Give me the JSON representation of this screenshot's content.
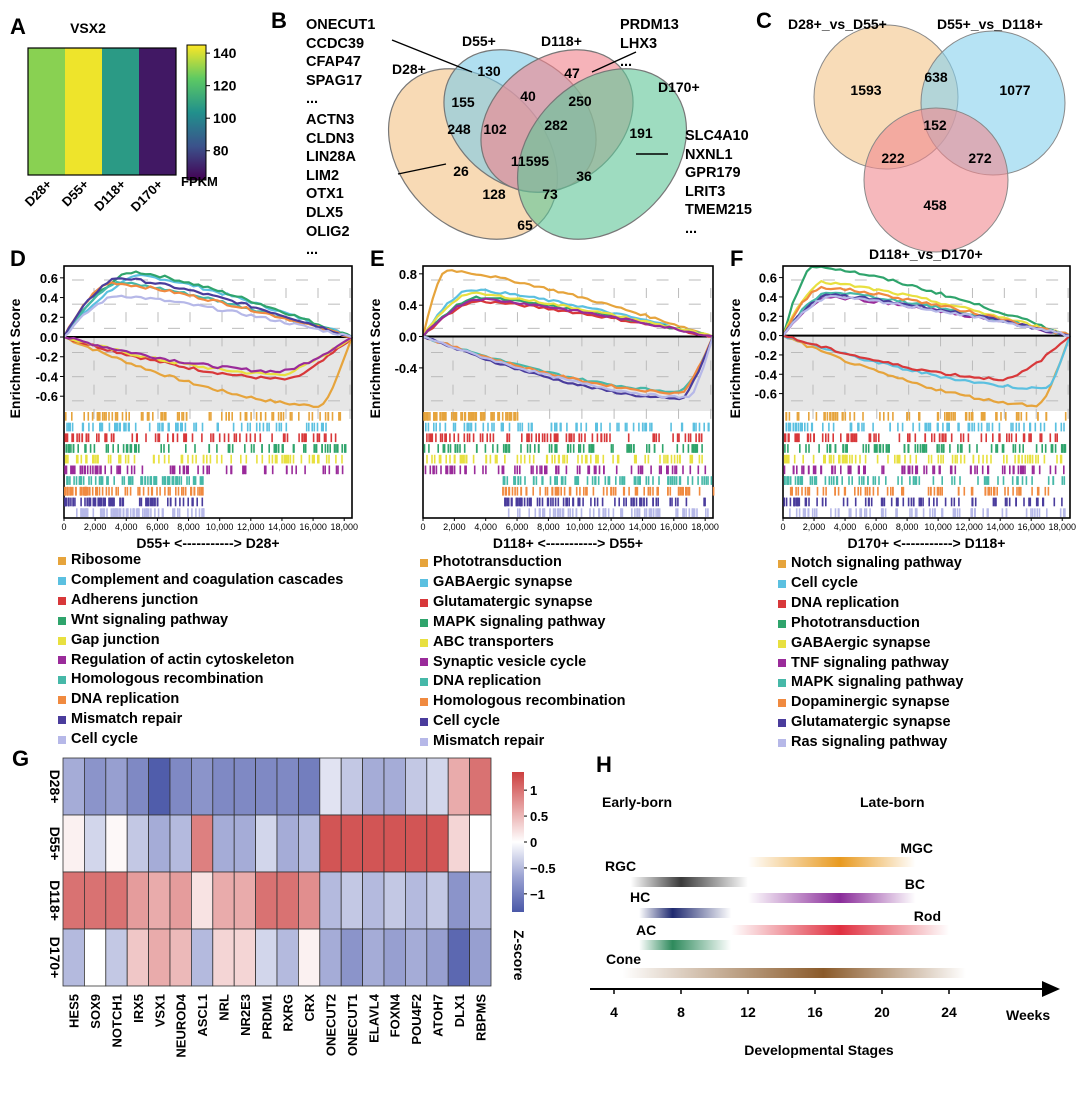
{
  "panels": {
    "A": {
      "label": "A",
      "title": "VSX2",
      "chart_data": {
        "type": "heatmap",
        "title": "VSX2",
        "categories": [
          "D28+",
          "D55+",
          "D118+",
          "D170+"
        ],
        "values": [
          130,
          143,
          107,
          68
        ],
        "colorbar_ticks": [
          "140",
          "120",
          "100",
          "80"
        ],
        "colorbar_range": [
          62,
          145
        ],
        "colorbar_label": "FPKM"
      }
    },
    "B": {
      "label": "B",
      "chart_data": {
        "type": "venn",
        "sets": [
          "D28+",
          "D55+",
          "D118+",
          "D170+"
        ],
        "regions": [
          {
            "sets": [
              "D28+"
            ],
            "value": 248
          },
          {
            "sets": [
              "D55+"
            ],
            "value": 130
          },
          {
            "sets": [
              "D118+"
            ],
            "value": 47
          },
          {
            "sets": [
              "D170+"
            ],
            "value": 191
          },
          {
            "sets": [
              "D28+",
              "D55+"
            ],
            "value": 155
          },
          {
            "sets": [
              "D55+",
              "D118+"
            ],
            "value": 40
          },
          {
            "sets": [
              "D118+",
              "D170+"
            ],
            "value": 250
          },
          {
            "sets": [
              "D28+",
              "D118+"
            ],
            "value": 26
          },
          {
            "sets": [
              "D55+",
              "D170+"
            ],
            "value": 65
          },
          {
            "sets": [
              "D28+",
              "D170+"
            ],
            "value": 36
          },
          {
            "sets": [
              "D28+",
              "D55+",
              "D118+"
            ],
            "value": 102
          },
          {
            "sets": [
              "D55+",
              "D118+",
              "D170+"
            ],
            "value": 282
          },
          {
            "sets": [
              "D28+",
              "D118+",
              "D170+"
            ],
            "value": 128
          },
          {
            "sets": [
              "D28+",
              "D55+",
              "D170+"
            ],
            "value": 73
          },
          {
            "sets": [
              "D28+",
              "D55+",
              "D118+",
              "D170+"
            ],
            "value": 11595
          }
        ],
        "gene_lists": {
          "D55_only": [
            "ONECUT1",
            "CCDC39",
            "CFAP47",
            "SPAG17",
            "..."
          ],
          "D28_only": [
            "ACTN3",
            "CLDN3",
            "LIN28A",
            "LIM2",
            "OTX1",
            "DLX5",
            "OLIG2",
            "..."
          ],
          "D118_only": [
            "PRDM13",
            "LHX3",
            "..."
          ],
          "D170_only": [
            "SLC4A10",
            "NXNL1",
            "GPR179",
            "LRIT3",
            "TMEM215",
            "..."
          ]
        }
      }
    },
    "C": {
      "label": "C",
      "chart_data": {
        "type": "venn",
        "sets": [
          "D28+_vs_D55+",
          "D55+_vs_D118+",
          "D118+_vs_D170+"
        ],
        "regions": [
          {
            "sets": [
              "D28+_vs_D55+"
            ],
            "value": 1593
          },
          {
            "sets": [
              "D55+_vs_D118+"
            ],
            "value": 1077
          },
          {
            "sets": [
              "D118+_vs_D170+"
            ],
            "value": 458
          },
          {
            "sets": [
              "D28+_vs_D55+",
              "D55+_vs_D118+"
            ],
            "value": 638
          },
          {
            "sets": [
              "D28+_vs_D55+",
              "D118+_vs_D170+"
            ],
            "value": 222
          },
          {
            "sets": [
              "D55+_vs_D118+",
              "D118+_vs_D170+"
            ],
            "value": 272
          },
          {
            "sets": [
              "D28+_vs_D55+",
              "D55+_vs_D118+",
              "D118+_vs_D170+"
            ],
            "value": 152
          }
        ]
      }
    },
    "gsea": [
      {
        "label": "D",
        "chart_data": {
          "type": "line",
          "ylabel": "Enrichment Score",
          "xlabel": "D55+ <-----------> D28+",
          "xlim": [
            0,
            18500
          ],
          "ylim": [
            -0.75,
            0.72
          ],
          "xticks": [
            "0",
            "2,000",
            "4,000",
            "6,000",
            "8,000",
            "10,000",
            "12,000",
            "14,000",
            "16,000",
            "18,000"
          ],
          "yticks": [
            "0.6",
            "0.4",
            "0.2",
            "0.0",
            "-0.2",
            "-0.4",
            "-0.6"
          ],
          "series": [
            {
              "name": "Ribosome",
              "color": "#E6A43C",
              "peak": -0.7,
              "peak_x": 16500,
              "band": [
                0,
                18200
              ]
            },
            {
              "name": "Complement and coagulation cascades",
              "color": "#5BC0E0",
              "peak": 0.62,
              "peak_x": 5000,
              "band": [
                0,
                17000
              ]
            },
            {
              "name": "Adherens junction",
              "color": "#D8383A",
              "peak": -0.43,
              "peak_x": 14500,
              "band": [
                0,
                18200
              ]
            },
            {
              "name": "Wnt signaling pathway",
              "color": "#2FA46C",
              "peak": 0.66,
              "peak_x": 4500,
              "band": [
                0,
                18200
              ]
            },
            {
              "name": "Gap junction",
              "color": "#E8E040",
              "peak": -0.38,
              "peak_x": 14000,
              "band": [
                0,
                18200
              ]
            },
            {
              "name": "Regulation of actin cytoskeleton",
              "color": "#9A2B9A",
              "peak": -0.35,
              "peak_x": 14000,
              "band": [
                0,
                18200
              ]
            },
            {
              "name": "Homologous recombination",
              "color": "#46B8A8",
              "peak": 0.55,
              "peak_x": 3500,
              "band": [
                0,
                9000
              ]
            },
            {
              "name": "DNA replication",
              "color": "#F08A40",
              "peak": 0.55,
              "peak_x": 3000,
              "band": [
                0,
                9000
              ]
            },
            {
              "name": "Mismatch repair",
              "color": "#4A3C9C",
              "peak": 0.6,
              "peak_x": 3500,
              "band": [
                0,
                9000
              ]
            },
            {
              "name": "Cell cycle",
              "color": "#B6B8E8",
              "peak": 0.42,
              "peak_x": 3500,
              "band": [
                0,
                9000
              ]
            }
          ]
        }
      },
      {
        "label": "E",
        "chart_data": {
          "type": "line",
          "ylabel": "Enrichment Score",
          "xlabel": "D118+ <-----------> D55+",
          "xlim": [
            0,
            18500
          ],
          "ylim": [
            -0.95,
            0.9
          ],
          "xticks": [
            "0",
            "2,000",
            "4,000",
            "6,000",
            "8,000",
            "10,000",
            "12,000",
            "14,000",
            "16,000",
            "18,000"
          ],
          "yticks": [
            "0.8",
            "0.4",
            "0.0",
            "-0.4"
          ],
          "series": [
            {
              "name": "Phototransduction",
              "color": "#E6A43C",
              "peak": 0.85,
              "peak_x": 1500,
              "band": [
                0,
                6000
              ]
            },
            {
              "name": "GABAergic synapse",
              "color": "#5BC0E0",
              "peak": 0.6,
              "peak_x": 3000,
              "band": [
                0,
                18200
              ]
            },
            {
              "name": "Glutamatergic synapse",
              "color": "#D8383A",
              "peak": 0.45,
              "peak_x": 3500,
              "band": [
                0,
                18200
              ]
            },
            {
              "name": "MAPK signaling pathway",
              "color": "#2FA46C",
              "peak": 0.5,
              "peak_x": 3500,
              "band": [
                0,
                18200
              ]
            },
            {
              "name": "ABC transporters",
              "color": "#E8E040",
              "peak": 0.55,
              "peak_x": 3000,
              "band": [
                0,
                18200
              ]
            },
            {
              "name": "Synaptic vesicle cycle",
              "color": "#9A2B9A",
              "peak": 0.48,
              "peak_x": 3500,
              "band": [
                0,
                18200
              ]
            },
            {
              "name": "DNA replication",
              "color": "#46B8A8",
              "peak": -0.7,
              "peak_x": 16500,
              "band": [
                5000,
                18500
              ]
            },
            {
              "name": "Homologous recombination",
              "color": "#F08A40",
              "peak": -0.72,
              "peak_x": 16500,
              "band": [
                5000,
                18500
              ]
            },
            {
              "name": "Cell cycle",
              "color": "#4A3C9C",
              "peak": -0.8,
              "peak_x": 16500,
              "band": [
                5000,
                18500
              ]
            },
            {
              "name": "Mismatch repair",
              "color": "#B6B8E8",
              "peak": -0.78,
              "peak_x": 17000,
              "band": [
                5000,
                18500
              ]
            }
          ]
        }
      },
      {
        "label": "F",
        "chart_data": {
          "type": "line",
          "ylabel": "Enrichment Score",
          "xlabel": "D170+ <-----------> D118+",
          "xlim": [
            0,
            18500
          ],
          "ylim": [
            -0.78,
            0.72
          ],
          "xticks": [
            "0",
            "2,000",
            "4,000",
            "6,000",
            "8,000",
            "10,000",
            "12,000",
            "14,000",
            "16,000",
            "18,000"
          ],
          "yticks": [
            "0.6",
            "0.4",
            "0.2",
            "0.0",
            "-0.2",
            "-0.4",
            "-0.6"
          ],
          "series": [
            {
              "name": "Notch signaling pathway",
              "color": "#E6A43C",
              "peak": -0.72,
              "peak_x": 16500,
              "band": [
                0,
                18200
              ]
            },
            {
              "name": "Cell cycle",
              "color": "#5BC0E0",
              "peak": -0.55,
              "peak_x": 17000,
              "band": [
                0,
                18200
              ]
            },
            {
              "name": "DNA replication",
              "color": "#D8383A",
              "peak": -0.45,
              "peak_x": 14500,
              "band": [
                0,
                18200
              ]
            },
            {
              "name": "Phototransduction",
              "color": "#2FA46C",
              "peak": 0.72,
              "peak_x": 2000,
              "band": [
                0,
                18200
              ]
            },
            {
              "name": "GABAergic synapse",
              "color": "#E8E040",
              "peak": 0.55,
              "peak_x": 2500,
              "band": [
                0,
                18200
              ]
            },
            {
              "name": "TNF signaling pathway",
              "color": "#9A2B9A",
              "peak": 0.4,
              "peak_x": 3000,
              "band": [
                0,
                18200
              ]
            },
            {
              "name": "MAPK signaling pathway",
              "color": "#46B8A8",
              "peak": 0.45,
              "peak_x": 3000,
              "band": [
                0,
                18200
              ]
            },
            {
              "name": "Dopaminergic synapse",
              "color": "#F08A40",
              "peak": 0.5,
              "peak_x": 2500,
              "band": [
                0,
                18200
              ]
            },
            {
              "name": "Glutamatergic synapse",
              "color": "#4A3C9C",
              "peak": 0.42,
              "peak_x": 3000,
              "band": [
                0,
                18200
              ]
            },
            {
              "name": "Ras signaling pathway",
              "color": "#B6B8E8",
              "peak": 0.4,
              "peak_x": 3000,
              "band": [
                0,
                18200
              ]
            }
          ]
        }
      }
    ],
    "G": {
      "label": "G",
      "chart_data": {
        "type": "heatmap",
        "rows": [
          "D28+",
          "D55+",
          "D118+",
          "D170+"
        ],
        "columns": [
          "HES5",
          "SOX9",
          "NOTCH1",
          "IRX5",
          "VSX1",
          "NEUROD4",
          "ASCL1",
          "NRL",
          "NR2E3",
          "PRDM1",
          "RXRG",
          "CRX",
          "ONECUT2",
          "ONECUT1",
          "ELAVL4",
          "FOXN4",
          "POU4F2",
          "ATOH7",
          "DLX1",
          "RBPMS"
        ],
        "values": [
          [
            -0.6,
            -0.8,
            -0.7,
            -0.9,
            -1.3,
            -0.9,
            -0.8,
            -0.9,
            -0.9,
            -0.9,
            -0.9,
            -1.0,
            -0.2,
            -0.4,
            -0.6,
            -0.6,
            -0.4,
            -0.3,
            0.6,
            1.0
          ],
          [
            0.1,
            -0.3,
            0.05,
            -0.4,
            -0.6,
            -0.5,
            0.9,
            -0.6,
            -0.6,
            -0.3,
            -0.6,
            -0.5,
            1.2,
            1.2,
            1.2,
            1.2,
            1.2,
            1.2,
            0.3,
            0.0
          ],
          [
            1.0,
            1.0,
            1.0,
            0.7,
            0.6,
            0.7,
            0.2,
            0.6,
            0.6,
            1.0,
            1.0,
            0.8,
            -0.5,
            -0.4,
            -0.5,
            -0.4,
            -0.5,
            -0.4,
            -0.8,
            -0.5
          ],
          [
            -0.5,
            0.0,
            -0.4,
            0.4,
            0.6,
            0.5,
            -0.5,
            0.3,
            0.3,
            -0.3,
            -0.5,
            0.1,
            -0.6,
            -0.8,
            -0.6,
            -0.7,
            -0.6,
            -0.7,
            -1.2,
            -0.7
          ]
        ],
        "colorbar_ticks": [
          "1",
          "0.5",
          "0",
          "−0.5",
          "−1"
        ],
        "colorbar_range": [
          -1.35,
          1.35
        ],
        "colorbar_label": "Z-score"
      }
    },
    "H": {
      "label": "H",
      "chart_data": {
        "type": "timeline",
        "xlabel": "Developmental Stages",
        "xunit": "Weeks",
        "xticks": [
          4,
          8,
          12,
          16,
          20,
          24
        ],
        "xlim": [
          2,
          28
        ],
        "headers": [
          "Early-born",
          "Late-born"
        ],
        "bars": [
          {
            "name": "RGC",
            "start": 5,
            "end": 12,
            "peak": 8,
            "color": "#3A3A3A"
          },
          {
            "name": "HC",
            "start": 5.5,
            "end": 11,
            "peak": 7.5,
            "color": "#1F2A70"
          },
          {
            "name": "AC",
            "start": 5.5,
            "end": 11,
            "peak": 7.5,
            "color": "#2E8A5C"
          },
          {
            "name": "Cone",
            "start": 4.5,
            "end": 25,
            "peak": 16.5,
            "color": "#8A5A2A"
          },
          {
            "name": "MGC",
            "start": 12,
            "end": 22,
            "peak": 17.5,
            "color": "#E89A20"
          },
          {
            "name": "BC",
            "start": 12,
            "end": 22,
            "peak": 17.5,
            "color": "#8A2C9A"
          },
          {
            "name": "Rod",
            "start": 11,
            "end": 24,
            "peak": 17.5,
            "color": "#E03040"
          }
        ]
      }
    }
  }
}
